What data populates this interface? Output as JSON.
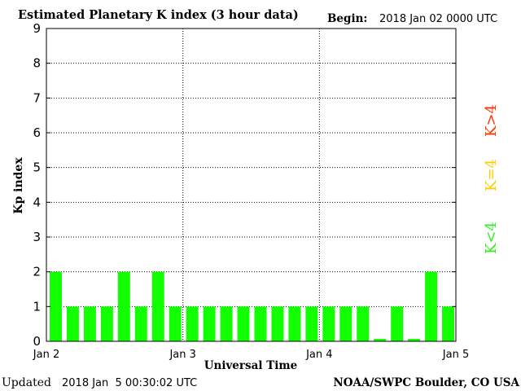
{
  "header": {
    "title": "Estimated Planetary K index (3 hour data)",
    "begin_label": "Begin:",
    "begin_value": "2018 Jan 02 0000 UTC"
  },
  "footer": {
    "updated_label": "Updated",
    "updated_value": "2018 Jan  5 00:30:02 UTC",
    "source": "NOAA/SWPC Boulder, CO USA"
  },
  "legend": {
    "items": [
      {
        "text": "K<4",
        "color": "#33ee22"
      },
      {
        "text": "K=4",
        "color": "#ffcc00"
      },
      {
        "text": "K>4",
        "color": "#ff3300"
      }
    ]
  },
  "colors": {
    "bar": "#11ff00",
    "grid": "#000000",
    "axis": "#000000"
  },
  "chart_data": {
    "type": "bar",
    "title": "Estimated Planetary K index (3 hour data)",
    "xlabel": "Universal Time",
    "ylabel": "Kp index",
    "ylim": [
      0,
      9
    ],
    "yticks": [
      "0",
      "1",
      "2",
      "3",
      "4",
      "5",
      "6",
      "7",
      "8",
      "9"
    ],
    "xticks": [
      "Jan 2",
      "Jan 3",
      "Jan 4",
      "Jan 5"
    ],
    "interval_hours": 3,
    "values": [
      2,
      1,
      1,
      1,
      2,
      1,
      2,
      1,
      1,
      1,
      1,
      1,
      1,
      1,
      1,
      1,
      1,
      1,
      1,
      0.07,
      1,
      0.07,
      2,
      1
    ],
    "grid": true
  }
}
